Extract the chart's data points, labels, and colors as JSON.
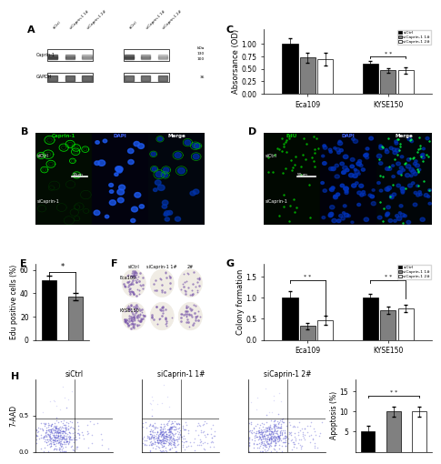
{
  "absorbance_ylabel": "Absorsance (OD)",
  "absorbance_eca109": [
    1.0,
    0.73,
    0.7
  ],
  "absorbance_kyse150": [
    0.6,
    0.47,
    0.47
  ],
  "absorbance_eca109_err": [
    0.12,
    0.1,
    0.13
  ],
  "absorbance_kyse150_err": [
    0.05,
    0.05,
    0.06
  ],
  "absorbance_ylim": [
    0.0,
    1.3
  ],
  "absorbance_yticks": [
    0.0,
    0.25,
    0.5,
    0.75,
    1.0
  ],
  "edu_ylabel": "Edu positive cells (%)",
  "edu_values": [
    51,
    37
  ],
  "edu_err": [
    4,
    3
  ],
  "edu_ylim": [
    0,
    65
  ],
  "edu_yticks": [
    0,
    20,
    40,
    60
  ],
  "edu_colors": [
    "#000000",
    "#808080"
  ],
  "colony_ylabel": "Colony formation",
  "colony_eca109": [
    1.0,
    0.33,
    0.47
  ],
  "colony_kyse150": [
    1.0,
    0.7,
    0.75
  ],
  "colony_eca109_err": [
    0.15,
    0.08,
    0.1
  ],
  "colony_kyse150_err": [
    0.1,
    0.08,
    0.08
  ],
  "colony_ylim": [
    0.0,
    1.8
  ],
  "colony_yticks": [
    0.0,
    0.5,
    1.0,
    1.5
  ],
  "apoptosis_ylabel": "Apoptosis (%)",
  "apoptosis_values": [
    5.0,
    10.0,
    10.0
  ],
  "apoptosis_err": [
    1.5,
    1.2,
    1.3
  ],
  "apoptosis_ylim": [
    0,
    18
  ],
  "apoptosis_yticks": [
    5,
    10,
    15
  ],
  "bar_colors": [
    "#000000",
    "#808080",
    "#ffffff"
  ],
  "bar_width": 0.22,
  "group_labels": [
    "Eca109",
    "KYSE150"
  ],
  "legend_labels": [
    "siCtrl",
    "siCaprin-1 1#",
    "siCaprin-1 2#"
  ],
  "microscopy_B_labels": [
    "Caprin-1",
    "DAPI",
    "Merge"
  ],
  "microscopy_D_labels": [
    "EdU",
    "DAPI",
    "Merge"
  ],
  "scale_bar_B": "10μm",
  "scale_bar_D": "50μm",
  "flow_titles": [
    "siCtrl",
    "siCaprin-1 1#",
    "siCaprin-1 2#"
  ],
  "colony_titles": [
    "siCtrl",
    "siCaprin-1 1#",
    "2#"
  ],
  "colony_row_labels": [
    "Eca109",
    "KYSE150"
  ],
  "fig_bg": "#ffffff",
  "fontsize_label": 7,
  "fontsize_tick": 5.5,
  "fontsize_panel": 8
}
